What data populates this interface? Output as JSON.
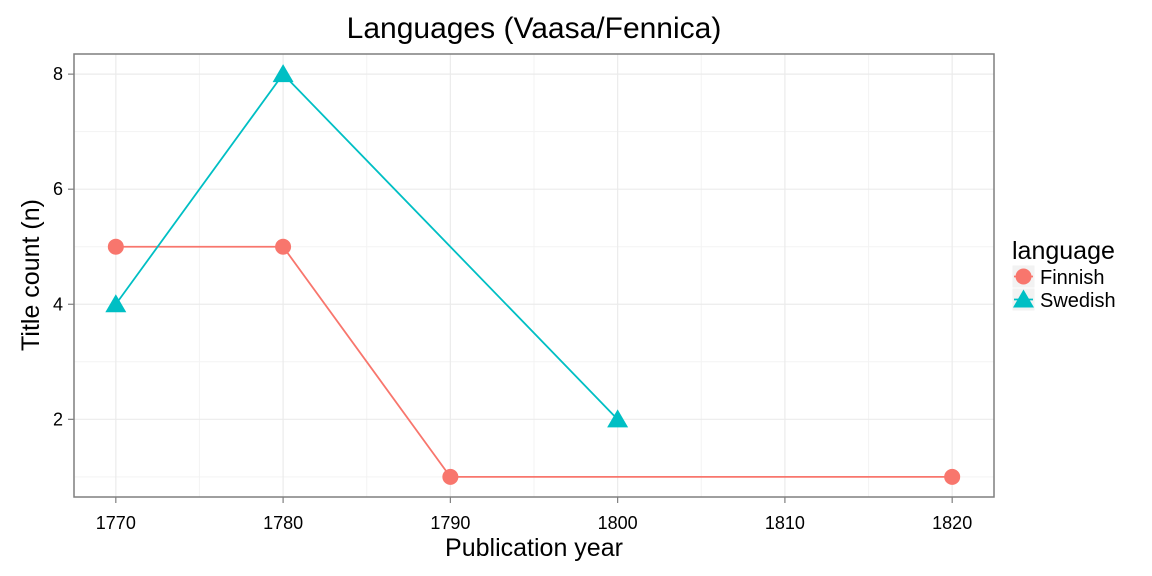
{
  "chart_data": {
    "type": "line",
    "title": "Languages (Vaasa/Fennica)",
    "xlabel": "Publication year",
    "ylabel": "Title count (n)",
    "xlim": [
      1767.5,
      1822.5
    ],
    "ylim": [
      0.65,
      8.35
    ],
    "x_ticks": [
      1770,
      1780,
      1790,
      1800,
      1810,
      1820
    ],
    "y_ticks": [
      2,
      4,
      6,
      8
    ],
    "x_minor_ticks": [
      1775,
      1785,
      1795,
      1805,
      1815
    ],
    "y_minor_ticks": [
      1,
      3,
      5,
      7
    ],
    "grid": true,
    "legend": {
      "title": "language",
      "position": "right"
    },
    "series": [
      {
        "name": "Finnish",
        "color": "#F8766D",
        "marker": "circle",
        "x": [
          1770,
          1780,
          1790,
          1820
        ],
        "y": [
          5,
          5,
          1,
          1
        ]
      },
      {
        "name": "Swedish",
        "color": "#00BFC4",
        "marker": "triangle",
        "x": [
          1770,
          1780,
          1800
        ],
        "y": [
          4,
          8,
          2
        ]
      }
    ]
  }
}
